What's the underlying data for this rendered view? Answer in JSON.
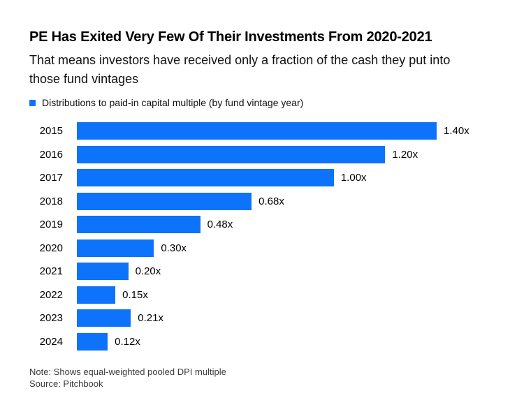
{
  "header": {
    "title": "PE Has Exited Very Few Of Their Investments From 2020-2021",
    "subtitle": "That means investors have received only a fraction of the cash they put into those fund vintages"
  },
  "legend": {
    "label": "Distributions to paid-in capital multiple (by fund vintage year)",
    "marker_color": "#0d73fb"
  },
  "chart_data": {
    "type": "bar",
    "orientation": "horizontal",
    "title": "Distributions to paid-in capital multiple (by fund vintage year)",
    "categories": [
      "2015",
      "2016",
      "2017",
      "2018",
      "2019",
      "2020",
      "2021",
      "2022",
      "2023",
      "2024"
    ],
    "values": [
      1.4,
      1.2,
      1.0,
      0.68,
      0.48,
      0.3,
      0.2,
      0.15,
      0.21,
      0.12
    ],
    "value_labels": [
      "1.40x",
      "1.20x",
      "1.00x",
      "0.68x",
      "0.48x",
      "0.30x",
      "0.20x",
      "0.15x",
      "0.21x",
      "0.12x"
    ],
    "xlim": [
      0,
      1.4
    ],
    "grid": false,
    "bar_color": "#0d73fb",
    "legend_position": "top-left"
  },
  "footer": {
    "note": "Note: Shows equal-weighted pooled DPI multiple",
    "source": "Source: Pitchbook"
  }
}
